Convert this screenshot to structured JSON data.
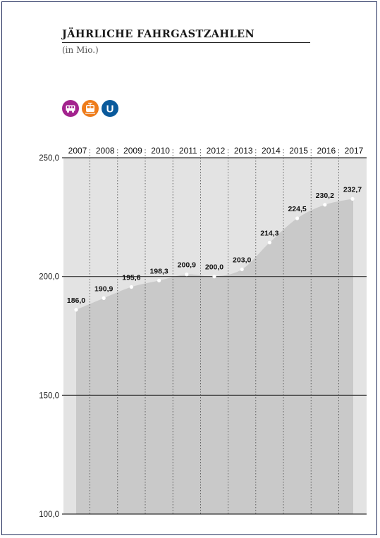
{
  "header": {
    "title": "JÄHRLICHE FAHRGASTZAHLEN",
    "subtitle": "(in Mio.)"
  },
  "icons": [
    {
      "name": "bus-icon",
      "color": "#a3238e"
    },
    {
      "name": "tram-icon",
      "color": "#ee7d1c"
    },
    {
      "name": "ubahn-icon",
      "color": "#0a5a9c",
      "text": "U"
    }
  ],
  "colors": {
    "area": "#c9c9c9",
    "background_band": "#e3e3e3",
    "gridline": "#333333",
    "marker": "#ffffff",
    "frame": "#1e2a5a"
  },
  "chart_data": {
    "type": "area",
    "x": [
      "2007",
      "2008",
      "2009",
      "2010",
      "2011",
      "2012",
      "2013",
      "2014",
      "2015",
      "2016",
      "2017"
    ],
    "series": [
      {
        "values": [
          186.0,
          190.9,
          195.6,
          198.3,
          200.9,
          200.0,
          203.0,
          214.3,
          224.5,
          230.2,
          232.7
        ]
      }
    ],
    "data_labels": [
      "186,0",
      "190,9",
      "195,6",
      "198,3",
      "200,9",
      "200,0",
      "203,0",
      "214,3",
      "224,5",
      "230,2",
      "232,7"
    ],
    "y_ticks": [
      250,
      200,
      150,
      100
    ],
    "y_tick_labels": [
      "250,0",
      "200,0",
      "150,0",
      "100,0"
    ],
    "ylim": [
      100,
      250
    ],
    "x_axis_position": "top",
    "grid": true
  }
}
